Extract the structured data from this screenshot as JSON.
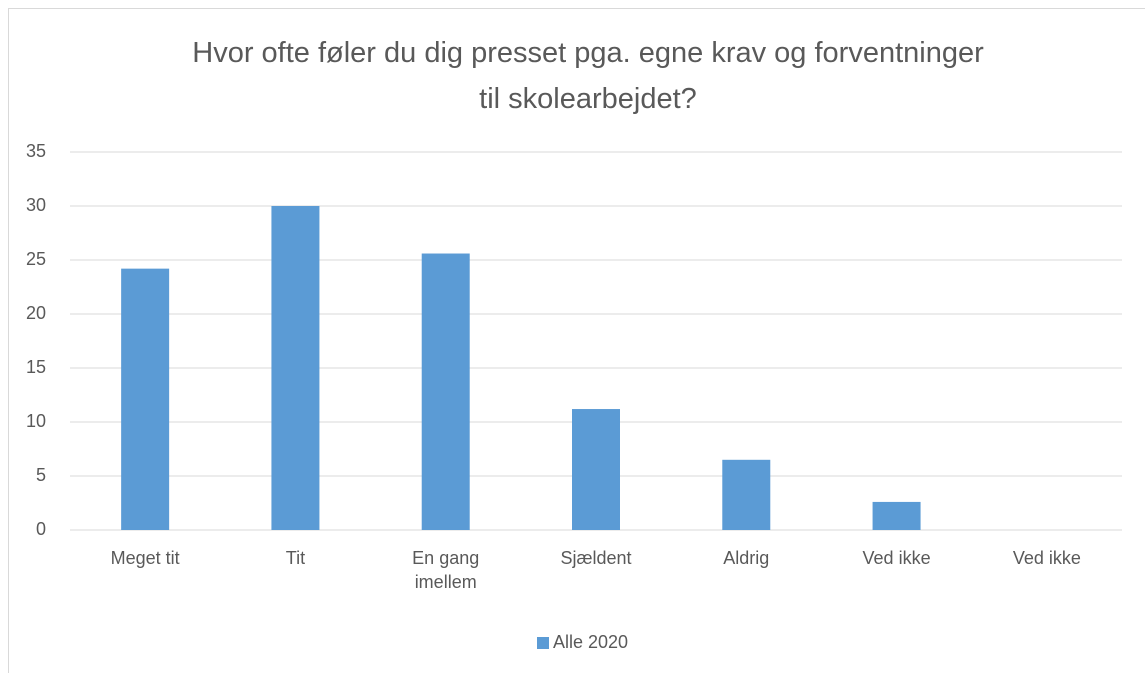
{
  "chart_data": {
    "type": "bar",
    "title": "Hvor ofte føler du dig presset pga. egne krav og forventninger til skolearbejdet?",
    "categories": [
      "Meget tit",
      "Tit",
      "En gang imellem",
      "Sjældent",
      "Aldrig",
      "Ved ikke",
      "Ved ikke"
    ],
    "series": [
      {
        "name": "Alle 2020",
        "color": "#5b9bd5",
        "values": [
          24.2,
          30,
          25.6,
          11.2,
          6.5,
          2.6,
          0
        ]
      }
    ],
    "ylim": [
      0,
      35
    ],
    "yticks": [
      0,
      5,
      10,
      15,
      20,
      25,
      30,
      35
    ],
    "grid": true,
    "legend": "bottom"
  }
}
